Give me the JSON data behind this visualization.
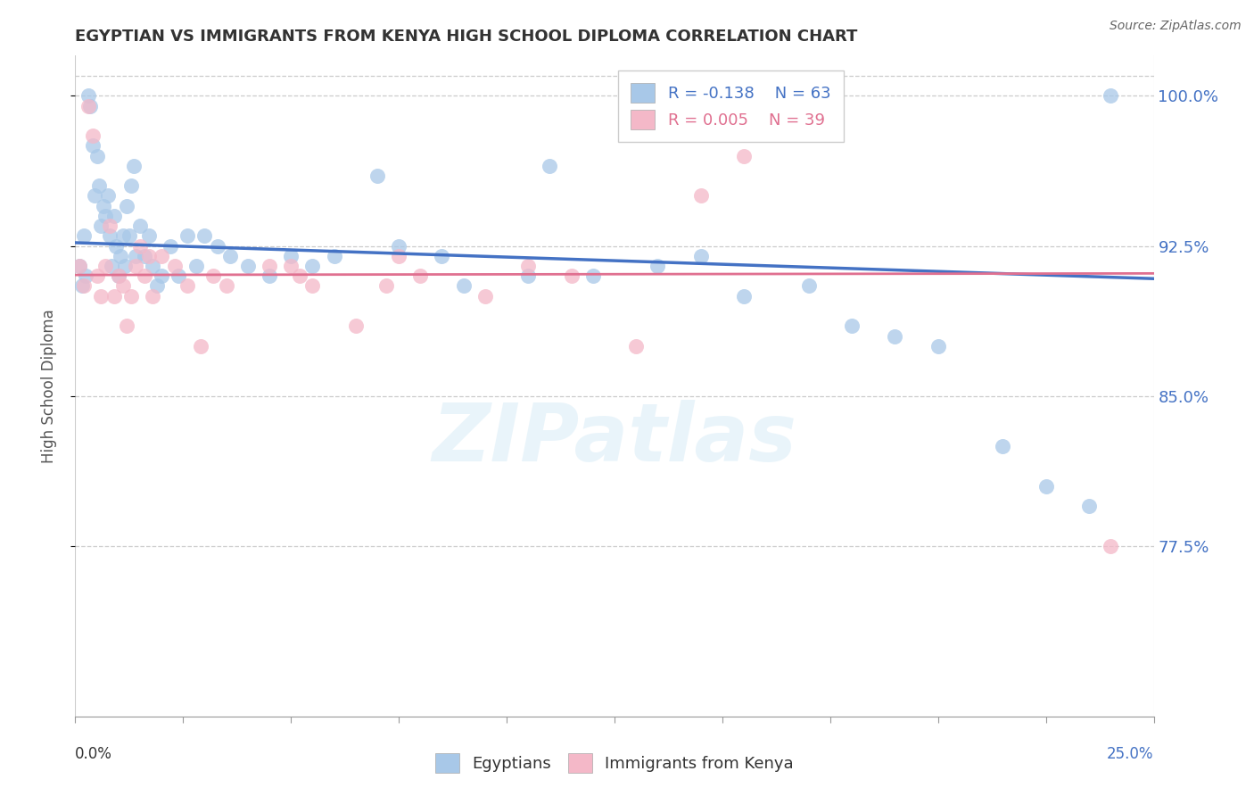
{
  "title": "EGYPTIAN VS IMMIGRANTS FROM KENYA HIGH SCHOOL DIPLOMA CORRELATION CHART",
  "source": "Source: ZipAtlas.com",
  "ylabel": "High School Diploma",
  "watermark": "ZIPatlas",
  "xmin": 0.0,
  "xmax": 25.0,
  "ymin": 69.0,
  "ymax": 102.0,
  "yticks": [
    77.5,
    85.0,
    92.5,
    100.0
  ],
  "blue_R": -0.138,
  "blue_N": 63,
  "pink_R": 0.005,
  "pink_N": 39,
  "blue_color": "#a8c8e8",
  "pink_color": "#f4b8c8",
  "blue_line_color": "#4472c4",
  "pink_line_color": "#e07090",
  "blue_scatter_x": [
    0.1,
    0.15,
    0.2,
    0.25,
    0.3,
    0.35,
    0.4,
    0.45,
    0.5,
    0.55,
    0.6,
    0.65,
    0.7,
    0.75,
    0.8,
    0.85,
    0.9,
    0.95,
    1.0,
    1.05,
    1.1,
    1.15,
    1.2,
    1.25,
    1.3,
    1.35,
    1.4,
    1.5,
    1.6,
    1.7,
    1.8,
    1.9,
    2.0,
    2.2,
    2.4,
    2.6,
    2.8,
    3.0,
    3.3,
    3.6,
    4.0,
    4.5,
    5.0,
    5.5,
    6.0,
    7.0,
    7.5,
    8.5,
    9.0,
    10.5,
    11.0,
    12.0,
    13.5,
    14.5,
    15.5,
    17.0,
    18.0,
    19.0,
    20.0,
    21.5,
    22.5,
    23.5,
    24.0
  ],
  "blue_scatter_y": [
    91.5,
    90.5,
    93.0,
    91.0,
    100.0,
    99.5,
    97.5,
    95.0,
    97.0,
    95.5,
    93.5,
    94.5,
    94.0,
    95.0,
    93.0,
    91.5,
    94.0,
    92.5,
    91.0,
    92.0,
    93.0,
    91.5,
    94.5,
    93.0,
    95.5,
    96.5,
    92.0,
    93.5,
    92.0,
    93.0,
    91.5,
    90.5,
    91.0,
    92.5,
    91.0,
    93.0,
    91.5,
    93.0,
    92.5,
    92.0,
    91.5,
    91.0,
    92.0,
    91.5,
    92.0,
    96.0,
    92.5,
    92.0,
    90.5,
    91.0,
    96.5,
    91.0,
    91.5,
    92.0,
    90.0,
    90.5,
    88.5,
    88.0,
    87.5,
    82.5,
    80.5,
    79.5,
    100.0
  ],
  "pink_scatter_x": [
    0.1,
    0.2,
    0.3,
    0.4,
    0.5,
    0.6,
    0.7,
    0.8,
    0.9,
    1.0,
    1.1,
    1.2,
    1.3,
    1.4,
    1.5,
    1.6,
    1.7,
    1.8,
    2.0,
    2.3,
    2.6,
    2.9,
    3.2,
    3.5,
    4.5,
    5.5,
    6.5,
    8.0,
    9.5,
    10.5,
    11.5,
    13.0,
    5.0,
    5.2,
    7.5,
    7.2,
    14.5,
    15.5,
    24.0
  ],
  "pink_scatter_y": [
    91.5,
    90.5,
    99.5,
    98.0,
    91.0,
    90.0,
    91.5,
    93.5,
    90.0,
    91.0,
    90.5,
    88.5,
    90.0,
    91.5,
    92.5,
    91.0,
    92.0,
    90.0,
    92.0,
    91.5,
    90.5,
    87.5,
    91.0,
    90.5,
    91.5,
    90.5,
    88.5,
    91.0,
    90.0,
    91.5,
    91.0,
    87.5,
    91.5,
    91.0,
    92.0,
    90.5,
    95.0,
    97.0,
    77.5
  ]
}
